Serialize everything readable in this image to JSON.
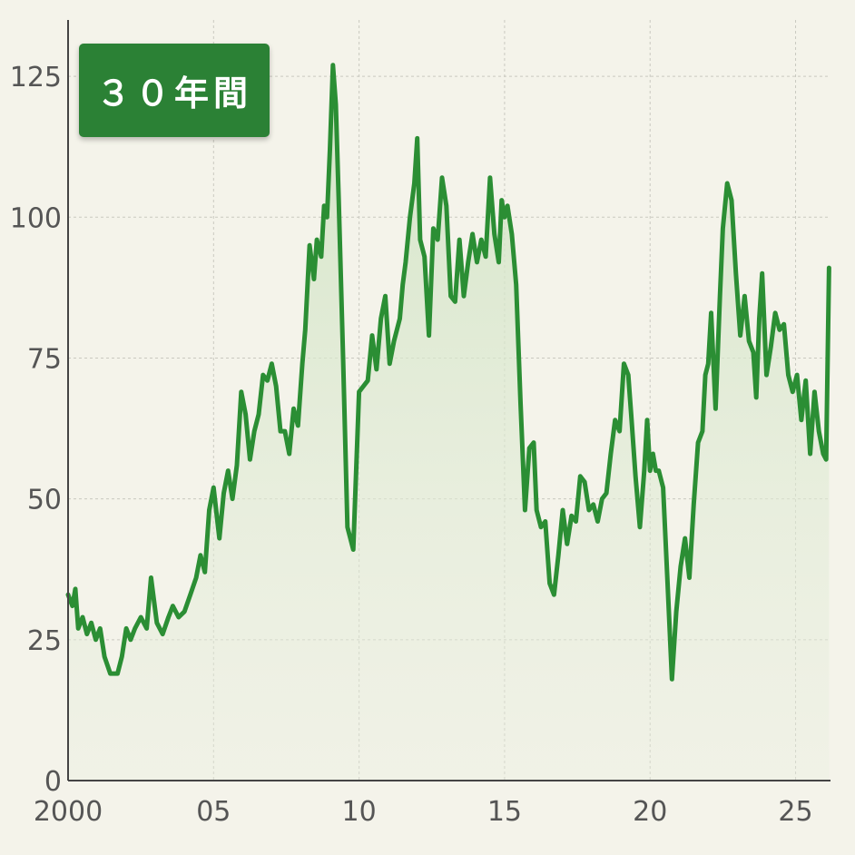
{
  "badge": {
    "label": "３０年間"
  },
  "colors": {
    "line": "#2b8e34",
    "fill": "#d8e8cc",
    "grid": "#c9c9c0",
    "badge": "#2b8135",
    "background": "#f4f3ea"
  },
  "chart_data": {
    "type": "line",
    "title": "",
    "xlabel": "",
    "ylabel": "",
    "xlim": [
      2000,
      2026.2
    ],
    "ylim": [
      0,
      135
    ],
    "grid": true,
    "area_fill": true,
    "y_ticks": [
      0,
      25,
      50,
      75,
      100,
      125
    ],
    "x_ticks": [
      {
        "value": 2000,
        "label": "2000"
      },
      {
        "value": 2005,
        "label": "05"
      },
      {
        "value": 2010,
        "label": "10"
      },
      {
        "value": 2015,
        "label": "15"
      },
      {
        "value": 2020,
        "label": "20"
      },
      {
        "value": 2025,
        "label": "25"
      }
    ],
    "series": [
      {
        "x": [
          2000.0,
          2000.15,
          2000.25,
          2000.35,
          2000.5,
          2000.65,
          2000.8,
          2000.95,
          2001.1,
          2001.25,
          2001.45,
          2001.7,
          2001.85,
          2002.0,
          2002.15,
          2002.3,
          2002.5,
          2002.7,
          2002.85,
          2003.05,
          2003.25,
          2003.45,
          2003.6,
          2003.8,
          2004.0,
          2004.2,
          2004.4,
          2004.55,
          2004.7,
          2004.85,
          2005.0,
          2005.2,
          2005.35,
          2005.5,
          2005.65,
          2005.8,
          2005.95,
          2006.1,
          2006.25,
          2006.4,
          2006.55,
          2006.7,
          2006.85,
          2007.0,
          2007.15,
          2007.3,
          2007.45,
          2007.6,
          2007.75,
          2007.9,
          2008.05,
          2008.15,
          2008.3,
          2008.45,
          2008.55,
          2008.7,
          2008.8,
          2008.9,
          2009.0,
          2009.1,
          2009.2,
          2009.3,
          2009.45,
          2009.6,
          2009.8,
          2010.0,
          2010.15,
          2010.3,
          2010.45,
          2010.6,
          2010.75,
          2010.9,
          2011.05,
          2011.2,
          2011.3,
          2011.4,
          2011.5,
          2011.6,
          2011.75,
          2011.9,
          2012.0,
          2012.1,
          2012.25,
          2012.4,
          2012.55,
          2012.7,
          2012.85,
          2013.0,
          2013.15,
          2013.3,
          2013.45,
          2013.6,
          2013.75,
          2013.9,
          2014.05,
          2014.2,
          2014.35,
          2014.5,
          2014.65,
          2014.8,
          2014.9,
          2015.0,
          2015.1,
          2015.25,
          2015.4,
          2015.55,
          2015.7,
          2015.85,
          2016.0,
          2016.1,
          2016.25,
          2016.4,
          2016.55,
          2016.7,
          2016.85,
          2017.0,
          2017.15,
          2017.3,
          2017.45,
          2017.6,
          2017.75,
          2017.9,
          2018.05,
          2018.2,
          2018.35,
          2018.5,
          2018.65,
          2018.8,
          2018.95,
          2019.1,
          2019.25,
          2019.35,
          2019.5,
          2019.65,
          2019.8,
          2019.9,
          2020.0,
          2020.1,
          2020.2,
          2020.3,
          2020.45,
          2020.6,
          2020.75,
          2020.9,
          2021.05,
          2021.2,
          2021.35,
          2021.5,
          2021.65,
          2021.8,
          2021.9,
          2022.0,
          2022.1,
          2022.25,
          2022.4,
          2022.5,
          2022.65,
          2022.8,
          2022.95,
          2023.1,
          2023.25,
          2023.4,
          2023.55,
          2023.65,
          2023.75,
          2023.85,
          2024.0,
          2024.15,
          2024.3,
          2024.45,
          2024.6,
          2024.75,
          2024.9,
          2025.05,
          2025.2,
          2025.35,
          2025.5,
          2025.65,
          2025.8,
          2025.95,
          2026.05,
          2026.15
        ],
        "values": [
          33,
          31,
          34,
          27,
          29,
          26,
          28,
          25,
          27,
          22,
          19,
          19,
          22,
          27,
          25,
          27,
          29,
          27,
          36,
          28,
          26,
          29,
          31,
          29,
          30,
          33,
          36,
          40,
          37,
          48,
          52,
          43,
          51,
          55,
          50,
          56,
          69,
          65,
          57,
          62,
          65,
          72,
          71,
          74,
          70,
          62,
          62,
          58,
          66,
          63,
          74,
          80,
          95,
          89,
          96,
          93,
          102,
          100,
          112,
          127,
          120,
          103,
          75,
          45,
          41,
          69,
          70,
          71,
          79,
          73,
          82,
          86,
          74,
          78,
          80,
          82,
          88,
          92,
          100,
          106,
          114,
          96,
          93,
          79,
          98,
          96,
          107,
          102,
          86,
          85,
          96,
          86,
          92,
          97,
          92,
          96,
          93,
          107,
          97,
          92,
          103,
          100,
          102,
          97,
          88,
          67,
          48,
          59,
          60,
          48,
          45,
          46,
          35,
          33,
          40,
          48,
          42,
          47,
          46,
          54,
          53,
          48,
          49,
          46,
          50,
          51,
          58,
          64,
          62,
          74,
          72,
          65,
          54,
          45,
          55,
          64,
          55,
          58,
          55,
          55,
          52,
          35,
          18,
          30,
          38,
          43,
          36,
          49,
          60,
          62,
          72,
          74,
          83,
          66,
          86,
          98,
          106,
          103,
          90,
          79,
          86,
          78,
          76,
          68,
          82,
          90,
          72,
          77,
          83,
          80,
          81,
          72,
          69,
          72,
          64,
          71,
          58,
          69,
          62,
          58,
          57,
          91
        ]
      }
    ]
  }
}
